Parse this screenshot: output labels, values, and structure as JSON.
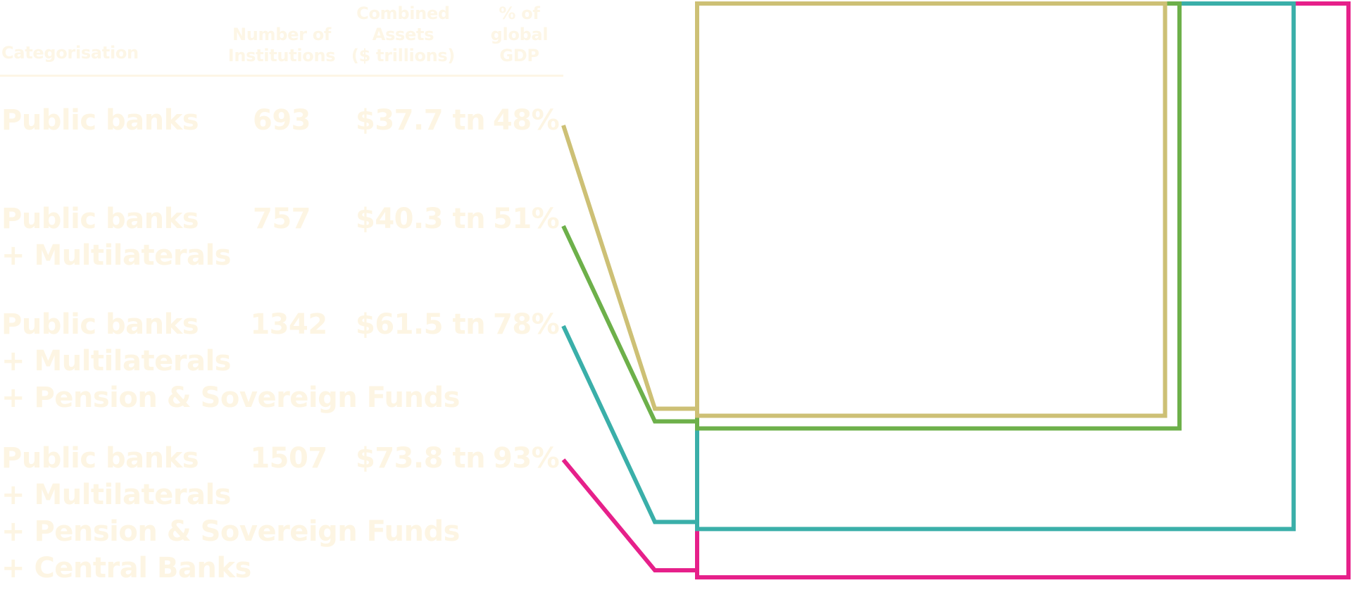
{
  "table": {
    "columns": [
      "Categorisation",
      "Number of\nInstitutions",
      "Combined\nAssets\n($ trillions)",
      "% of\nglobal\nGDP"
    ],
    "rows": [
      {
        "category": "Public banks",
        "institutions": "693",
        "assets": "$37.7 tn",
        "gdp": "48%",
        "color": "#cdc075"
      },
      {
        "category": "Public banks\n+ Multilaterals",
        "institutions": "757",
        "assets": "$40.3 tn",
        "gdp": "51%",
        "color": "#6db04a"
      },
      {
        "category": "Public banks\n+ Multilaterals\n+ Pension & Sovereign Funds",
        "institutions": "1342",
        "assets": "$61.5 tn",
        "gdp": "78%",
        "color": "#3aafa9"
      },
      {
        "category": "Public banks\n+ Multilaterals\n+ Pension & Sovereign Funds\n+ Central Banks",
        "institutions": "1507",
        "assets": "$73.8 tn",
        "gdp": "93%",
        "color": "#e6208a"
      }
    ]
  },
  "chart_data": {
    "type": "table",
    "columns": [
      "Categorisation",
      "Number of Institutions",
      "Combined Assets ($ trillions)",
      "% of global GDP"
    ],
    "rows": [
      [
        "Public banks",
        693,
        37.7,
        48
      ],
      [
        "Public banks + Multilaterals",
        757,
        40.3,
        51
      ],
      [
        "Public banks + Multilaterals + Pension & Sovereign Funds",
        1342,
        61.5,
        78
      ],
      [
        "Public banks + Multilaterals + Pension & Sovereign Funds + Central Banks",
        1507,
        73.8,
        93
      ]
    ],
    "nested_boxes_represent": "gdp",
    "box_colors": [
      "#cdc075",
      "#6db04a",
      "#3aafa9",
      "#e6208a"
    ]
  }
}
